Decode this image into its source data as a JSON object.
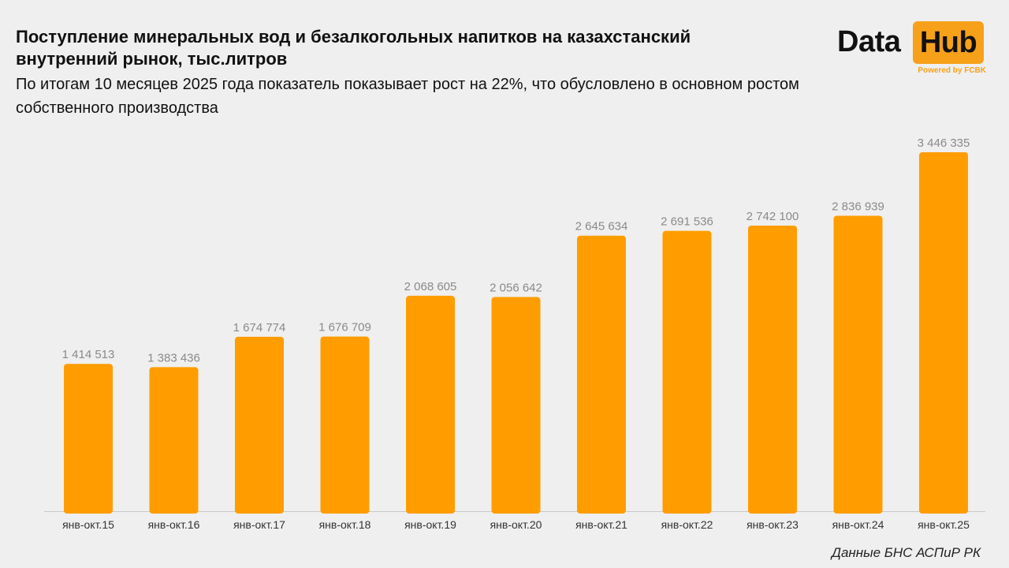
{
  "header": {
    "title": "Поступление минеральных вод и безалкогольных напитков на казахстанский внутренний рынок, тыс.литров",
    "subtitle": "По итогам 10 месяцев 2025 года показатель показывает рост на 22%, что обусловлено в основном ростом собственного производства"
  },
  "logo": {
    "word1": "Data",
    "word2": "Hub",
    "powered": "Powered by FCBK"
  },
  "source": "Данные БНС АСПиР РК",
  "colors": {
    "bar": "#ff9d00",
    "background": "#efefef",
    "label": "#8a8a8a",
    "axis": "#c8c8c8"
  },
  "chart_data": {
    "type": "bar",
    "categories": [
      "янв-окт.15",
      "янв-окт.16",
      "янв-окт.17",
      "янв-окт.18",
      "янв-окт.19",
      "янв-окт.20",
      "янв-окт.21",
      "янв-окт.22",
      "янв-окт.23",
      "янв-окт.24",
      "янв-окт.25"
    ],
    "values": [
      1414513,
      1383436,
      1674774,
      1676709,
      2068605,
      2056642,
      2645634,
      2691536,
      2742100,
      2836939,
      3446335
    ],
    "value_labels": [
      "1 414 513",
      "1 383 436",
      "1 674 774",
      "1 676 709",
      "2 068 605",
      "2 056 642",
      "2 645 634",
      "2 691 536",
      "2 742 100",
      "2 836 939",
      "3 446 335"
    ],
    "ylim": [
      0,
      3446335
    ],
    "grid": false,
    "legend": "none"
  }
}
